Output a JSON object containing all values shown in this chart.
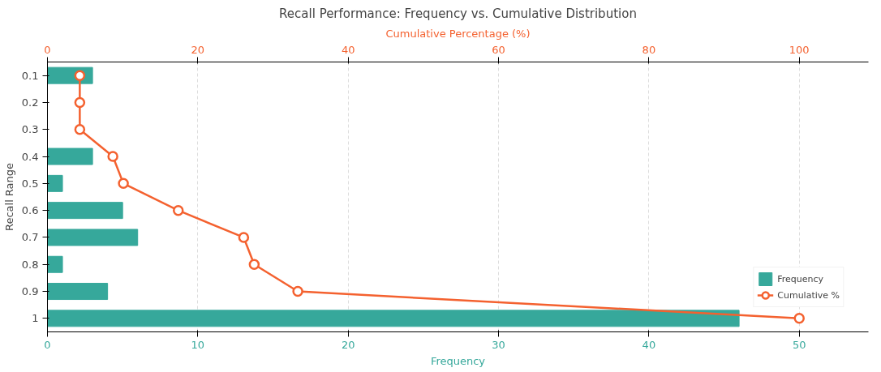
{
  "chart_data": {
    "type": "bar",
    "orientation": "horizontal",
    "title": "Recall Performance: Frequency vs. Cumulative Distribution",
    "xlabel": "Frequency",
    "ylabel": "Recall Range",
    "x2label": "Cumulative Percentage (%)",
    "categories": [
      "0.1",
      "0.2",
      "0.3",
      "0.4",
      "0.5",
      "0.6",
      "0.7",
      "0.8",
      "0.9",
      "1"
    ],
    "series": [
      {
        "name": "Frequency",
        "color": "#36a89b",
        "values": [
          3,
          0,
          0,
          3,
          1,
          5,
          6,
          1,
          4,
          46
        ]
      },
      {
        "name": "Cumulative %",
        "type": "line",
        "axis": "x2",
        "color": "#f4612f",
        "values": [
          4.3,
          4.3,
          4.3,
          8.7,
          10.1,
          17.4,
          26.1,
          27.5,
          33.3,
          100
        ]
      }
    ],
    "xlim": [
      0,
      54.6
    ],
    "xticks": [
      0,
      10,
      20,
      30,
      40,
      50
    ],
    "x2lim": [
      0,
      109.2
    ],
    "x2ticks": [
      0,
      20,
      40,
      60,
      80,
      100
    ],
    "grid": "x",
    "legend": "bottom right",
    "marker": "circle",
    "line_style": "solid"
  }
}
